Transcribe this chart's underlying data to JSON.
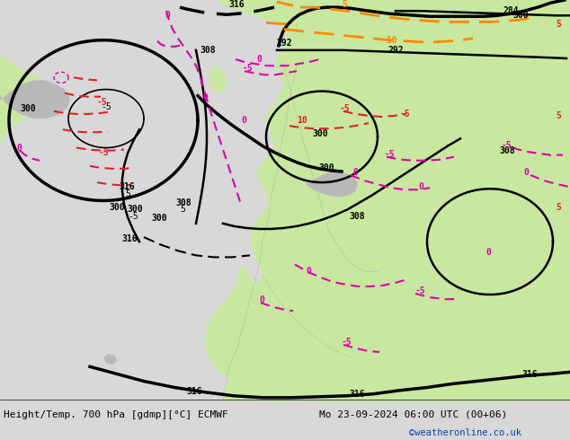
{
  "title_left": "Height/Temp. 700 hPa [gdmp][°C] ECMWF",
  "title_right": "Mo 23-09-2024 06:00 UTC (00+06)",
  "watermark": "©weatheronline.co.uk",
  "bg_map_color": "#f0f0f0",
  "land_green": "#c8e8a0",
  "land_gray": "#b8b8b8",
  "sea_color": "#e8eef4",
  "title_fontsize": 9,
  "watermark_color": "#0044bb",
  "bottom_bar_color": "#d8d8d8",
  "line_black": "#000000",
  "line_magenta": "#dd00aa",
  "line_red": "#dd2222",
  "line_orange": "#ff8800"
}
